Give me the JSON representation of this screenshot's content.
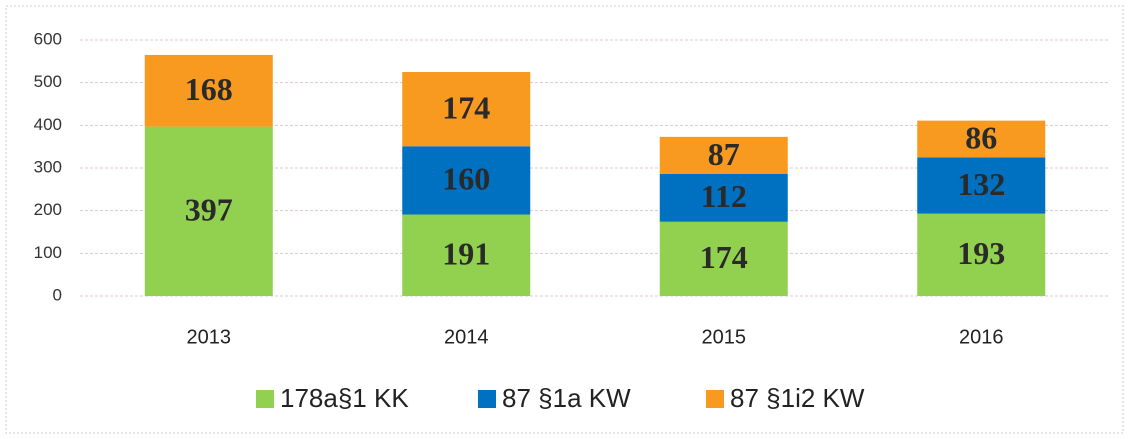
{
  "chart_data": {
    "type": "bar",
    "stacked": true,
    "categories": [
      "2013",
      "2014",
      "2015",
      "2016"
    ],
    "series": [
      {
        "name": "178a§1 KK",
        "color": "#92d050",
        "values": [
          397,
          191,
          174,
          193
        ]
      },
      {
        "name": "87 §1a KW",
        "color": "#0070c0",
        "values": [
          null,
          160,
          112,
          132
        ]
      },
      {
        "name": "87 §1i2 KW",
        "color": "#f79a1f",
        "values": [
          168,
          174,
          87,
          86
        ]
      }
    ],
    "ylim": [
      0,
      600
    ],
    "yticks": [
      0,
      100,
      200,
      300,
      400,
      500,
      600
    ],
    "grid": true,
    "legend": "bottom"
  }
}
